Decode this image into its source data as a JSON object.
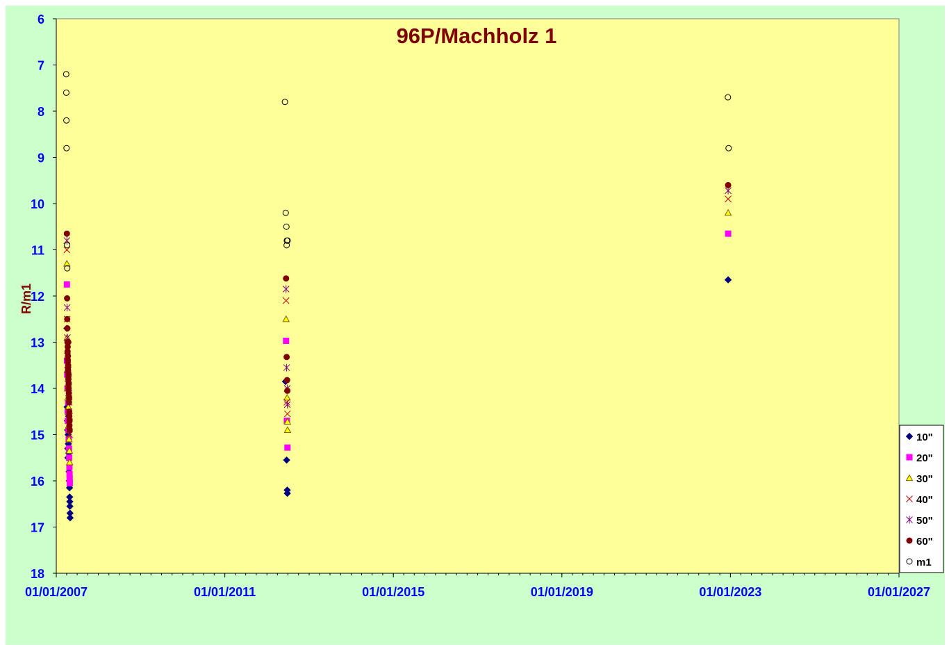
{
  "chart_data": {
    "type": "scatter",
    "title": "96P/Machholz 1",
    "xlabel": "",
    "ylabel": "R/m1",
    "xlim": [
      "01/01/2007",
      "01/01/2027"
    ],
    "ylim": [
      6,
      18
    ],
    "y_inverted": true,
    "x_tick_labels": [
      "01/01/2007",
      "01/01/2011",
      "01/01/2015",
      "01/01/2019",
      "01/01/2023",
      "01/01/2027"
    ],
    "y_tick_labels": [
      "6",
      "7",
      "8",
      "9",
      "10",
      "11",
      "12",
      "13",
      "14",
      "15",
      "16",
      "17",
      "18"
    ],
    "grid": false,
    "legend": "right",
    "background": "#ffff99",
    "outer_background": "#ccffcc",
    "series": [
      {
        "name": "10\"",
        "marker": "diamond",
        "color": "#000080",
        "points": [
          [
            "2007-04-03",
            12.7
          ],
          [
            "2007-04-05",
            14.4
          ],
          [
            "2007-04-07",
            14.7
          ],
          [
            "2007-04-09",
            14.9
          ],
          [
            "2007-04-11",
            15.3
          ],
          [
            "2007-04-12",
            15.5
          ],
          [
            "2007-04-14",
            15.0
          ],
          [
            "2007-04-16",
            15.2
          ],
          [
            "2007-04-18",
            14.6
          ],
          [
            "2007-04-20",
            15.4
          ],
          [
            "2007-04-22",
            15.8
          ],
          [
            "2007-04-24",
            16.0
          ],
          [
            "2007-04-26",
            16.15
          ],
          [
            "2007-04-27",
            16.35
          ],
          [
            "2007-04-28",
            16.45
          ],
          [
            "2007-04-29",
            16.55
          ],
          [
            "2007-04-30",
            16.7
          ],
          [
            "2007-05-01",
            16.8
          ],
          [
            "2012-06-10",
            13.85
          ],
          [
            "2012-06-20",
            15.55
          ],
          [
            "2012-06-25",
            16.2
          ],
          [
            "2012-06-26",
            16.27
          ],
          [
            "2022-12-12",
            11.65
          ]
        ]
      },
      {
        "name": "20\"",
        "marker": "square",
        "color": "#ff00ff",
        "points": [
          [
            "2007-04-03",
            11.75
          ],
          [
            "2007-04-04",
            13.4
          ],
          [
            "2007-04-06",
            13.7
          ],
          [
            "2007-04-08",
            14.0
          ],
          [
            "2007-04-10",
            14.5
          ],
          [
            "2007-04-12",
            14.7
          ],
          [
            "2007-04-14",
            14.3
          ],
          [
            "2007-04-17",
            14.9
          ],
          [
            "2007-04-19",
            15.1
          ],
          [
            "2007-04-21",
            15.3
          ],
          [
            "2007-04-23",
            15.5
          ],
          [
            "2007-04-25",
            15.7
          ],
          [
            "2007-04-26",
            15.85
          ],
          [
            "2007-04-27",
            15.95
          ],
          [
            "2007-04-28",
            16.05
          ],
          [
            "2012-06-15",
            12.97
          ],
          [
            "2012-06-22",
            14.7
          ],
          [
            "2012-06-27",
            15.28
          ],
          [
            "2022-12-12",
            10.65
          ]
        ]
      },
      {
        "name": "30\"",
        "marker": "triangle",
        "color": "#ffff00",
        "stroke": "#806000",
        "points": [
          [
            "2007-04-03",
            11.3
          ],
          [
            "2007-04-05",
            12.9
          ],
          [
            "2007-04-07",
            13.6
          ],
          [
            "2007-04-09",
            14.0
          ],
          [
            "2007-04-11",
            14.2
          ],
          [
            "2007-04-14",
            13.9
          ],
          [
            "2007-04-16",
            14.4
          ],
          [
            "2007-04-19",
            14.8
          ],
          [
            "2007-04-22",
            15.1
          ],
          [
            "2007-04-25",
            15.35
          ],
          [
            "2007-04-27",
            15.6
          ],
          [
            "2012-06-15",
            12.5
          ],
          [
            "2012-06-24",
            14.2
          ],
          [
            "2012-06-27",
            14.72
          ],
          [
            "2012-06-28",
            14.9
          ],
          [
            "2022-12-12",
            10.2
          ]
        ]
      },
      {
        "name": "40\"",
        "marker": "x",
        "color": "#c00000",
        "points": [
          [
            "2007-04-03",
            11.0
          ],
          [
            "2007-04-05",
            12.5
          ],
          [
            "2007-04-07",
            13.3
          ],
          [
            "2007-04-09",
            13.6
          ],
          [
            "2007-04-11",
            13.9
          ],
          [
            "2007-04-14",
            13.7
          ],
          [
            "2007-04-17",
            14.1
          ],
          [
            "2007-04-20",
            14.5
          ],
          [
            "2007-04-23",
            14.8
          ],
          [
            "2007-04-26",
            15.0
          ],
          [
            "2012-06-15",
            12.1
          ],
          [
            "2012-06-22",
            14.3
          ],
          [
            "2012-06-27",
            14.55
          ],
          [
            "2022-12-12",
            9.9
          ]
        ]
      },
      {
        "name": "50\"",
        "marker": "star",
        "color": "#800080",
        "points": [
          [
            "2007-04-03",
            10.8
          ],
          [
            "2007-04-05",
            12.25
          ],
          [
            "2007-04-07",
            12.9
          ],
          [
            "2007-04-09",
            13.3
          ],
          [
            "2007-04-11",
            13.5
          ],
          [
            "2007-04-14",
            13.6
          ],
          [
            "2007-04-17",
            13.8
          ],
          [
            "2007-04-20",
            14.1
          ],
          [
            "2007-04-23",
            14.3
          ],
          [
            "2007-04-26",
            14.6
          ],
          [
            "2012-06-15",
            11.85
          ],
          [
            "2012-06-20",
            13.55
          ],
          [
            "2012-06-25",
            14.0
          ],
          [
            "2012-06-26",
            14.35
          ],
          [
            "2022-12-12",
            9.72
          ]
        ]
      },
      {
        "name": "60\"",
        "marker": "circle",
        "color": "#800000",
        "points": [
          [
            "2007-04-03",
            10.65
          ],
          [
            "2007-04-05",
            12.05
          ],
          [
            "2007-04-06",
            12.5
          ],
          [
            "2007-04-07",
            12.7
          ],
          [
            "2007-04-08",
            13.0
          ],
          [
            "2007-04-09",
            13.2
          ],
          [
            "2007-04-10",
            13.1
          ],
          [
            "2007-04-11",
            13.4
          ],
          [
            "2007-04-12",
            13.3
          ],
          [
            "2007-04-13",
            13.6
          ],
          [
            "2007-04-14",
            13.5
          ],
          [
            "2007-04-15",
            13.0
          ],
          [
            "2007-04-16",
            13.8
          ],
          [
            "2007-04-17",
            13.7
          ],
          [
            "2007-04-18",
            14.0
          ],
          [
            "2007-04-19",
            13.9
          ],
          [
            "2007-04-20",
            14.1
          ],
          [
            "2007-04-21",
            14.3
          ],
          [
            "2007-04-22",
            14.2
          ],
          [
            "2007-04-23",
            14.5
          ],
          [
            "2007-04-24",
            14.6
          ],
          [
            "2007-04-25",
            14.8
          ],
          [
            "2007-04-26",
            14.7
          ],
          [
            "2007-04-27",
            14.9
          ],
          [
            "2012-06-15",
            11.62
          ],
          [
            "2012-06-20",
            13.32
          ],
          [
            "2012-06-24",
            13.82
          ],
          [
            "2012-06-26",
            14.05
          ],
          [
            "2022-12-12",
            9.6
          ]
        ]
      },
      {
        "name": "m1",
        "marker": "circle-open",
        "color": "#000000",
        "points": [
          [
            "2007-03-28",
            7.2
          ],
          [
            "2007-03-29",
            7.6
          ],
          [
            "2007-03-30",
            8.2
          ],
          [
            "2007-03-31",
            8.8
          ],
          [
            "2007-04-05",
            10.9
          ],
          [
            "2007-04-06",
            11.4
          ],
          [
            "2012-06-05",
            7.8
          ],
          [
            "2012-06-12",
            10.2
          ],
          [
            "2012-06-18",
            10.5
          ],
          [
            "2012-06-20",
            10.9
          ],
          [
            "2012-06-22",
            10.8
          ],
          [
            "2012-06-28",
            10.8
          ],
          [
            "2022-12-10",
            7.7
          ],
          [
            "2022-12-16",
            8.8
          ]
        ]
      }
    ]
  }
}
